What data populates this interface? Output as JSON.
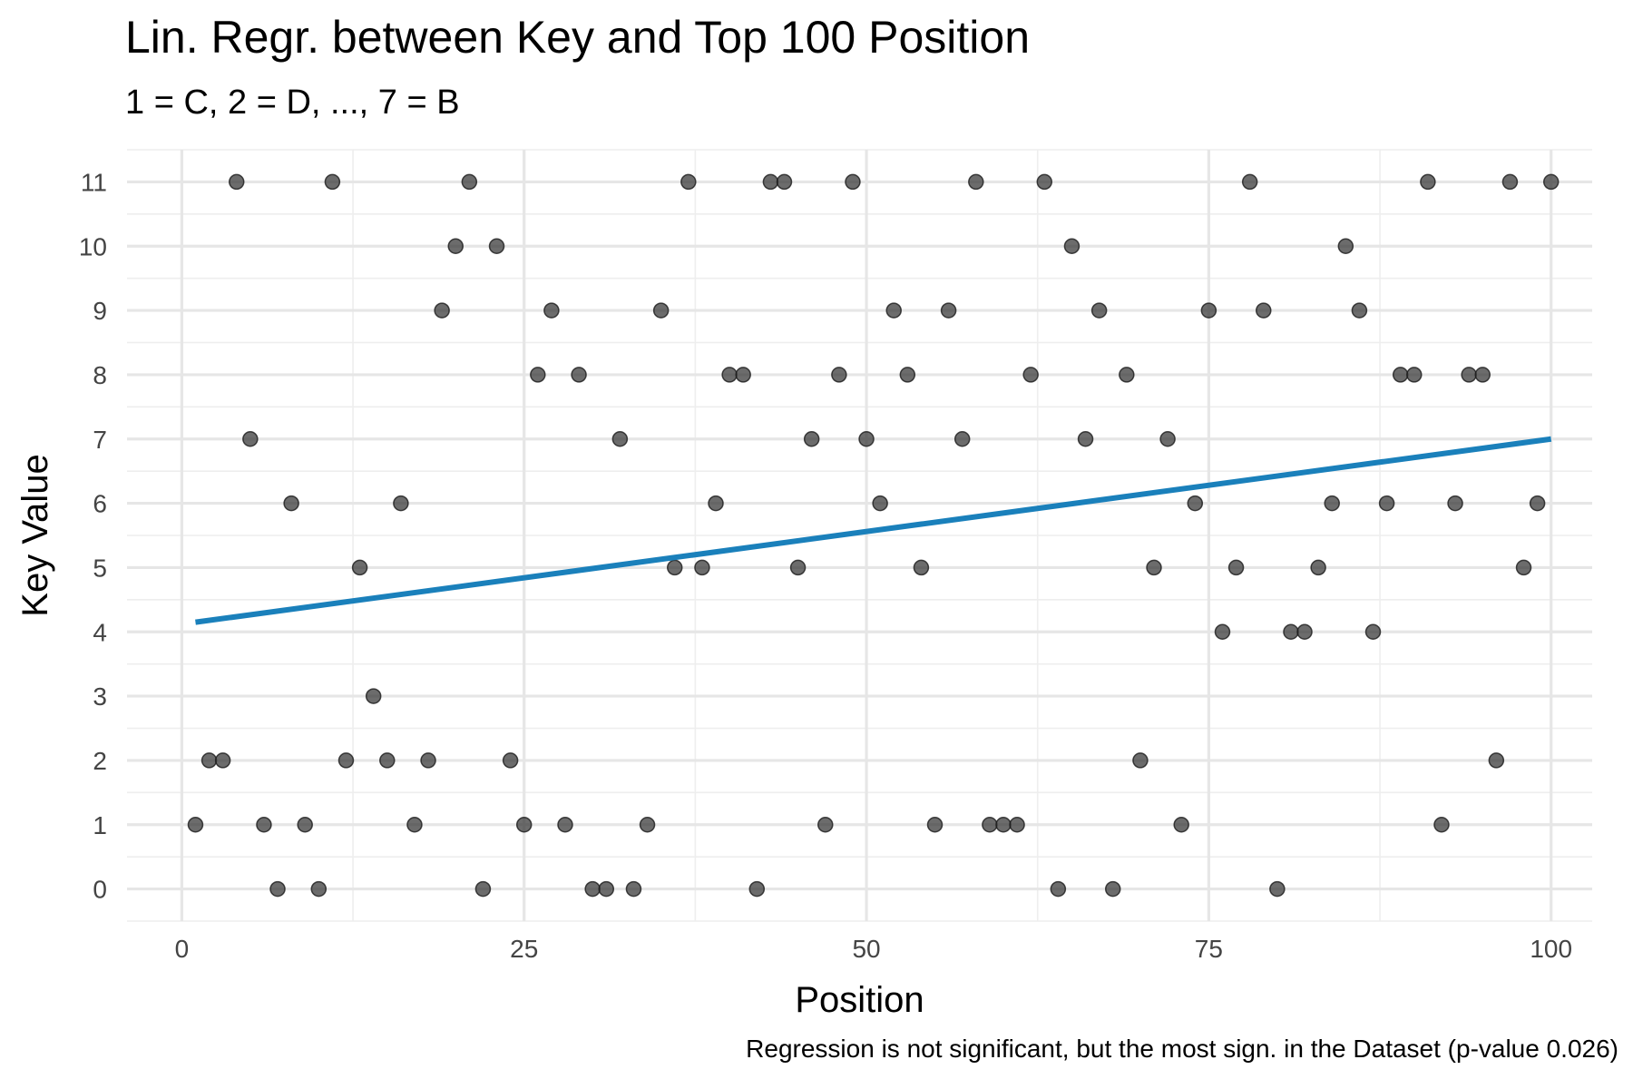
{
  "chart_data": {
    "type": "scatter",
    "title": "Lin. Regr. between Key and Top 100 Position",
    "subtitle": "1 = C, 2 = D, ..., 7 = B",
    "caption": "Regression is not significant, but the most sign. in the Dataset (p-value 0.026)",
    "xlabel": "Position",
    "ylabel": "Key Value",
    "xlim": [
      -4,
      103
    ],
    "ylim": [
      -0.5,
      11.5
    ],
    "x_ticks": [
      0,
      25,
      50,
      75,
      100
    ],
    "y_ticks": [
      0,
      1,
      2,
      3,
      4,
      5,
      6,
      7,
      8,
      9,
      10,
      11
    ],
    "grid": true,
    "series": [
      {
        "type": "scatter",
        "points": [
          [
            1,
            1
          ],
          [
            2,
            2
          ],
          [
            3,
            2
          ],
          [
            4,
            11
          ],
          [
            5,
            7
          ],
          [
            6,
            1
          ],
          [
            7,
            0
          ],
          [
            8,
            6
          ],
          [
            9,
            1
          ],
          [
            10,
            0
          ],
          [
            11,
            11
          ],
          [
            12,
            2
          ],
          [
            13,
            5
          ],
          [
            14,
            3
          ],
          [
            15,
            2
          ],
          [
            16,
            6
          ],
          [
            17,
            1
          ],
          [
            18,
            2
          ],
          [
            19,
            9
          ],
          [
            20,
            10
          ],
          [
            21,
            11
          ],
          [
            22,
            0
          ],
          [
            23,
            10
          ],
          [
            24,
            2
          ],
          [
            25,
            1
          ],
          [
            26,
            8
          ],
          [
            27,
            9
          ],
          [
            28,
            1
          ],
          [
            29,
            8
          ],
          [
            30,
            0
          ],
          [
            31,
            0
          ],
          [
            32,
            7
          ],
          [
            33,
            0
          ],
          [
            34,
            1
          ],
          [
            35,
            9
          ],
          [
            36,
            5
          ],
          [
            37,
            11
          ],
          [
            38,
            5
          ],
          [
            39,
            6
          ],
          [
            40,
            8
          ],
          [
            41,
            8
          ],
          [
            42,
            0
          ],
          [
            43,
            11
          ],
          [
            44,
            11
          ],
          [
            45,
            5
          ],
          [
            46,
            7
          ],
          [
            47,
            1
          ],
          [
            48,
            8
          ],
          [
            49,
            11
          ],
          [
            50,
            7
          ],
          [
            51,
            6
          ],
          [
            52,
            9
          ],
          [
            53,
            8
          ],
          [
            54,
            5
          ],
          [
            55,
            1
          ],
          [
            56,
            9
          ],
          [
            57,
            7
          ],
          [
            58,
            11
          ],
          [
            59,
            1
          ],
          [
            60,
            1
          ],
          [
            61,
            1
          ],
          [
            62,
            8
          ],
          [
            63,
            11
          ],
          [
            64,
            0
          ],
          [
            65,
            10
          ],
          [
            66,
            7
          ],
          [
            67,
            9
          ],
          [
            68,
            0
          ],
          [
            69,
            8
          ],
          [
            70,
            2
          ],
          [
            71,
            5
          ],
          [
            72,
            7
          ],
          [
            73,
            1
          ],
          [
            74,
            6
          ],
          [
            75,
            9
          ],
          [
            76,
            4
          ],
          [
            77,
            5
          ],
          [
            78,
            11
          ],
          [
            79,
            9
          ],
          [
            80,
            0
          ],
          [
            81,
            4
          ],
          [
            82,
            4
          ],
          [
            83,
            5
          ],
          [
            84,
            6
          ],
          [
            85,
            10
          ],
          [
            86,
            9
          ],
          [
            87,
            4
          ],
          [
            88,
            6
          ],
          [
            89,
            8
          ],
          [
            90,
            8
          ],
          [
            91,
            11
          ],
          [
            92,
            1
          ],
          [
            93,
            6
          ],
          [
            94,
            8
          ],
          [
            95,
            8
          ],
          [
            96,
            2
          ],
          [
            97,
            11
          ],
          [
            98,
            5
          ],
          [
            99,
            6
          ],
          [
            100,
            11
          ]
        ],
        "color": "#333333"
      },
      {
        "type": "line",
        "name": "",
        "x": [
          1,
          100
        ],
        "y": [
          4.15,
          7.0
        ],
        "color": "#1a80bb"
      }
    ]
  }
}
